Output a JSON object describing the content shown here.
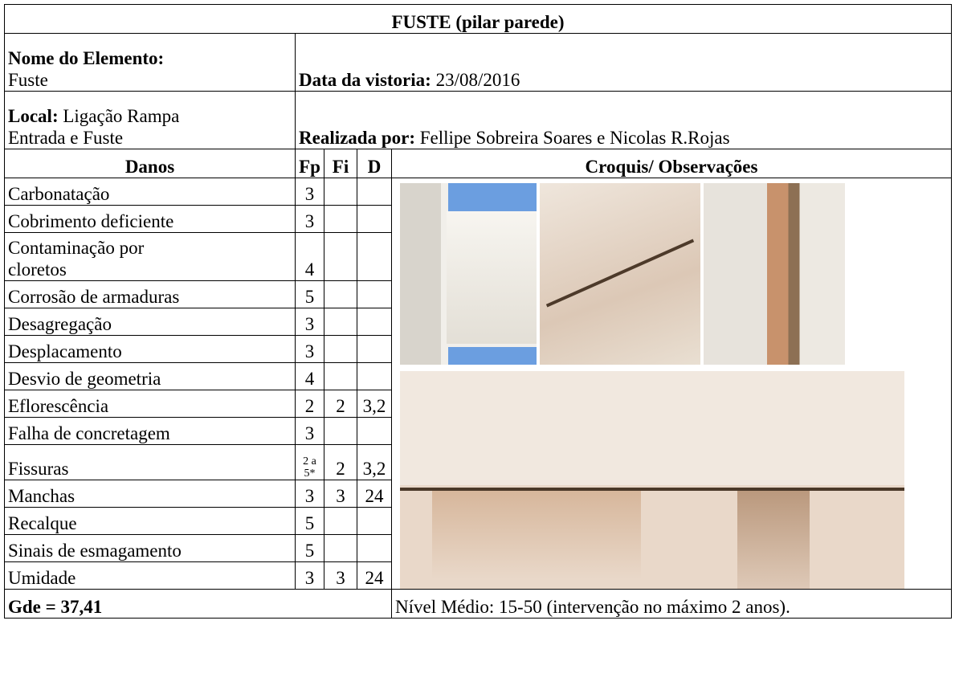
{
  "title": "FUSTE (pilar parede)",
  "element": {
    "label": "Nome do Elemento:",
    "value": "Fuste"
  },
  "date": {
    "label": "Data da vistoria:",
    "value": "23/08/2016"
  },
  "local": {
    "label": "Local:",
    "value": "Ligação Rampa\nEntrada e Fuste"
  },
  "author": {
    "label": "Realizada por:",
    "value": "Fellipe Sobreira Soares e Nicolas R.Rojas"
  },
  "headers": [
    "Danos",
    "Fp",
    "Fi",
    "D",
    "Croquis/ Observações"
  ],
  "rows": [
    {
      "dano": "Carbonatação",
      "fp": 3
    },
    {
      "dano": "Cobrimento deficiente",
      "fp": 3
    },
    {
      "dano": "Contaminação por\ncloretos",
      "fp": 4
    },
    {
      "dano": "Corrosão de armaduras",
      "fp": 5
    },
    {
      "dano": "Desagregação",
      "fp": 3
    },
    {
      "dano": "Desplacamento",
      "fp": 3
    },
    {
      "dano": "Desvio de geometria",
      "fp": 4
    },
    {
      "dano": "Eflorescência",
      "fp": 2,
      "fi": 2,
      "d": "3,2"
    },
    {
      "dano": "Falha de concretagem",
      "fp": 3
    },
    {
      "dano": "Fissuras",
      "fp": "2 a\n5*",
      "fi": 2,
      "d": "3,2"
    },
    {
      "dano": "Manchas",
      "fp": 3,
      "fi": 3,
      "d": 24
    },
    {
      "dano": "Recalque",
      "fp": 5
    },
    {
      "dano": "Sinais de esmagamento",
      "fp": 5
    },
    {
      "dano": "Umidade",
      "fp": 3,
      "fi": 3,
      "d": 24
    }
  ],
  "footer": {
    "gde": "Gde = 37,41",
    "nivel": "Nível Médio: 15-50 (intervenção no máximo 2 anos)."
  }
}
